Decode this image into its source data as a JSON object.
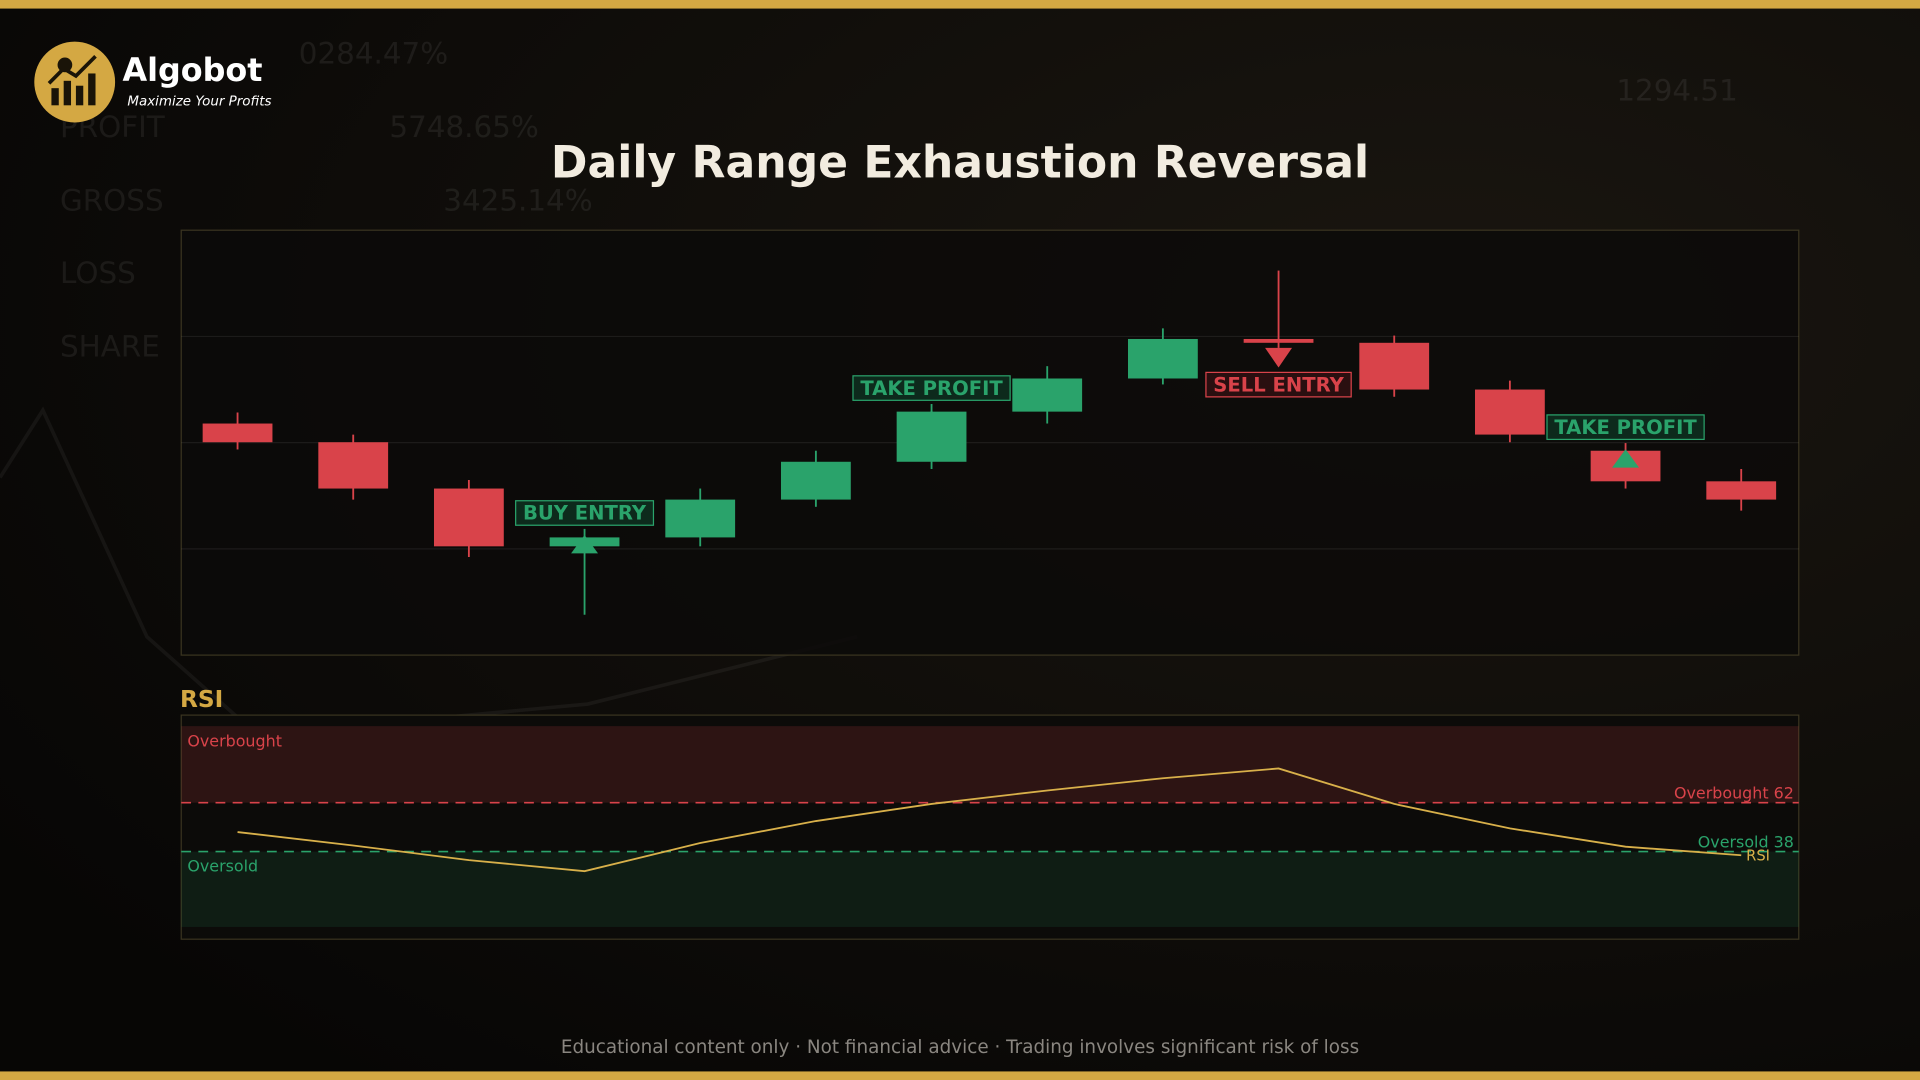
{
  "header": {
    "brand": "Algobot",
    "tagline": "Maximize Your Profits"
  },
  "background_text": [
    "0284.47%",
    "PROFIT",
    "5748.65%",
    "GROSS",
    "3425.14%",
    "LOSS",
    "SHARE",
    "1294.51"
  ],
  "chart_data": [
    {
      "type": "candlestick",
      "title": "Daily Range Exhaustion Reversal",
      "categories": [
        null,
        null,
        null,
        null,
        null,
        null,
        null,
        null,
        null,
        null,
        null,
        null,
        null,
        null
      ],
      "open": [
        54.5,
        50.1,
        39.2,
        25.6,
        27.7,
        36.6,
        45.5,
        57.3,
        65.1,
        74.4,
        73.5,
        62.5,
        48.1,
        40.9
      ],
      "high": [
        57.1,
        51.9,
        41.2,
        29.7,
        39.2,
        48.1,
        59.1,
        68.0,
        76.9,
        90.5,
        75.2,
        64.6,
        49.9,
        43.8
      ],
      "low": [
        48.4,
        36.6,
        23.1,
        9.5,
        25.6,
        34.9,
        43.8,
        54.5,
        63.7,
        72.3,
        60.8,
        50.1,
        39.2,
        34.0
      ],
      "close": [
        50.1,
        39.2,
        25.6,
        27.7,
        36.6,
        45.5,
        57.3,
        65.1,
        74.4,
        73.5,
        62.5,
        51.9,
        40.9,
        36.6
      ],
      "up_color": "#2aa36b",
      "down_color": "#d9434a",
      "ylim": [
        0,
        100
      ],
      "grid": true,
      "signals": [
        {
          "at": 3,
          "label": "BUY ENTRY",
          "kind": "buy"
        },
        {
          "at": 6,
          "label": "TAKE PROFIT",
          "kind": "buy"
        },
        {
          "at": 9,
          "label": "SELL ENTRY",
          "kind": "sell"
        },
        {
          "at": 12,
          "label": "TAKE PROFIT",
          "kind": "buy"
        }
      ]
    },
    {
      "type": "line",
      "title": "RSI",
      "categories": [
        null,
        null,
        null,
        null,
        null,
        null,
        null,
        null,
        null,
        null,
        null,
        null,
        null,
        null
      ],
      "series": [
        {
          "name": "RSI",
          "color": "#d8b04a",
          "values": [
            47.6,
            41.0,
            33.8,
            28.4,
            42.2,
            53.0,
            61.4,
            68.0,
            74.0,
            78.8,
            61.4,
            49.4,
            40.4,
            36.2
          ]
        }
      ],
      "ylim": [
        -5,
        105
      ],
      "thresholds": [
        {
          "value": 62,
          "label": "Overbought 62",
          "color": "#d9434a"
        },
        {
          "value": 38,
          "label": "Oversold 38",
          "color": "#2aa36b"
        }
      ],
      "zone_labels": [
        "Overbought",
        "Oversold"
      ]
    }
  ],
  "footer": "Educational content only · Not financial advice · Trading involves significant risk of loss"
}
